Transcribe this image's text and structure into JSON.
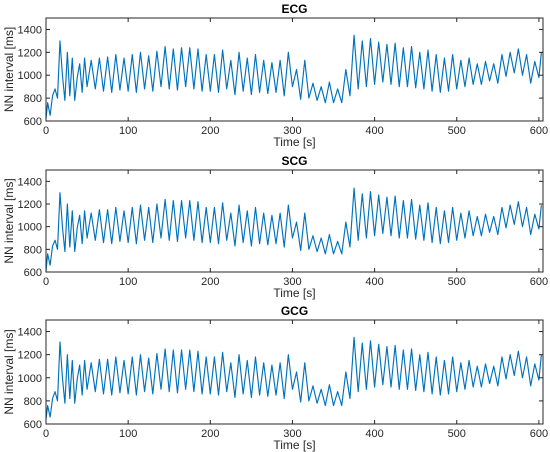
{
  "chart_data": [
    {
      "type": "line",
      "title": "ECG",
      "xlabel": "Time [s]",
      "ylabel": "NN interval [ms]",
      "xlim": [
        0,
        605
      ],
      "ylim": [
        600,
        1500
      ],
      "xticks": [
        "0",
        "100",
        "200",
        "300",
        "400",
        "500",
        "600"
      ],
      "yticks": [
        "600",
        "800",
        "1000",
        "1200",
        "1400"
      ],
      "color": "#0072BD",
      "series": [
        {
          "x": [
            0,
            2,
            5,
            8,
            11,
            14,
            17,
            20,
            23,
            26,
            29,
            32,
            35,
            38,
            41,
            44,
            47,
            50,
            55,
            60,
            65,
            70,
            75,
            80,
            85,
            90,
            95,
            100,
            105,
            110,
            115,
            120,
            125,
            130,
            135,
            140,
            145,
            150,
            155,
            160,
            165,
            170,
            175,
            180,
            185,
            190,
            195,
            200,
            205,
            210,
            215,
            220,
            225,
            230,
            235,
            240,
            245,
            250,
            255,
            260,
            265,
            270,
            275,
            280,
            285,
            290,
            295,
            300,
            305,
            310,
            315,
            320,
            325,
            330,
            335,
            340,
            345,
            350,
            355,
            360,
            365,
            370,
            375,
            380,
            385,
            390,
            395,
            400,
            405,
            410,
            415,
            420,
            425,
            430,
            435,
            440,
            445,
            450,
            455,
            460,
            465,
            470,
            475,
            480,
            485,
            490,
            495,
            500,
            505,
            510,
            515,
            520,
            525,
            530,
            535,
            540,
            545,
            550,
            555,
            560,
            565,
            570,
            575,
            580,
            585,
            590,
            595,
            600,
            603
          ],
          "y": [
            620,
            760,
            650,
            820,
            880,
            800,
            1300,
            1000,
            780,
            1200,
            820,
            1150,
            780,
            980,
            1100,
            850,
            1150,
            900,
            1130,
            880,
            1150,
            860,
            1160,
            850,
            1180,
            870,
            1150,
            860,
            1180,
            850,
            1200,
            880,
            1170,
            860,
            1210,
            900,
            1250,
            880,
            1230,
            870,
            1240,
            900,
            1240,
            880,
            1230,
            860,
            1180,
            860,
            1180,
            850,
            1220,
            880,
            1130,
            830,
            1200,
            860,
            1150,
            830,
            1180,
            850,
            1130,
            840,
            1110,
            850,
            1130,
            820,
            1200,
            900,
            1050,
            790,
            1130,
            800,
            930,
            780,
            900,
            760,
            940,
            760,
            880,
            760,
            1050,
            820,
            1350,
            880,
            1300,
            900,
            1320,
            920,
            1290,
            940,
            1270,
            920,
            1280,
            900,
            1240,
            900,
            1250,
            890,
            1200,
            880,
            1220,
            860,
            1180,
            850,
            1150,
            860,
            1180,
            880,
            1130,
            900,
            1150,
            920,
            1100,
            920,
            1120,
            950,
            1100,
            930,
            1180,
            990,
            1200,
            1020,
            1230,
            1000,
            1180,
            930,
            1120,
            980,
            1200
          ]
        }
      ]
    },
    {
      "type": "line",
      "title": "SCG",
      "xlabel": "Time [s]",
      "ylabel": "NN interval [ms]",
      "xlim": [
        0,
        605
      ],
      "ylim": [
        600,
        1500
      ],
      "xticks": [
        "0",
        "100",
        "200",
        "300",
        "400",
        "500",
        "600"
      ],
      "yticks": [
        "600",
        "800",
        "1000",
        "1200",
        "1400"
      ],
      "color": "#0072BD",
      "series": [
        {
          "x": [
            0,
            2,
            5,
            8,
            11,
            14,
            17,
            20,
            23,
            26,
            29,
            32,
            35,
            38,
            41,
            44,
            47,
            50,
            55,
            60,
            65,
            70,
            75,
            80,
            85,
            90,
            95,
            100,
            105,
            110,
            115,
            120,
            125,
            130,
            135,
            140,
            145,
            150,
            155,
            160,
            165,
            170,
            175,
            180,
            185,
            190,
            195,
            200,
            205,
            210,
            215,
            220,
            225,
            230,
            235,
            240,
            245,
            250,
            255,
            260,
            265,
            270,
            275,
            280,
            285,
            290,
            295,
            300,
            305,
            310,
            315,
            320,
            325,
            330,
            335,
            340,
            345,
            350,
            355,
            360,
            365,
            370,
            375,
            380,
            385,
            390,
            395,
            400,
            405,
            410,
            415,
            420,
            425,
            430,
            435,
            440,
            445,
            450,
            455,
            460,
            465,
            470,
            475,
            480,
            485,
            490,
            495,
            500,
            505,
            510,
            515,
            520,
            525,
            530,
            535,
            540,
            545,
            550,
            555,
            560,
            565,
            570,
            575,
            580,
            585,
            590,
            595,
            600,
            603
          ],
          "y": [
            610,
            760,
            660,
            830,
            880,
            800,
            1300,
            1000,
            780,
            1200,
            820,
            1140,
            780,
            990,
            1100,
            850,
            1140,
            900,
            1120,
            880,
            1150,
            860,
            1150,
            850,
            1170,
            870,
            1140,
            860,
            1170,
            850,
            1190,
            880,
            1170,
            860,
            1200,
            900,
            1240,
            880,
            1230,
            870,
            1230,
            900,
            1230,
            880,
            1220,
            860,
            1170,
            860,
            1170,
            850,
            1210,
            880,
            1120,
            830,
            1190,
            860,
            1140,
            830,
            1170,
            850,
            1120,
            840,
            1100,
            850,
            1120,
            820,
            1190,
            900,
            1040,
            790,
            1120,
            800,
            920,
            780,
            900,
            760,
            930,
            760,
            870,
            760,
            1040,
            820,
            1340,
            880,
            1290,
            900,
            1310,
            920,
            1280,
            940,
            1260,
            920,
            1270,
            900,
            1230,
            900,
            1240,
            890,
            1190,
            880,
            1210,
            860,
            1170,
            850,
            1140,
            860,
            1170,
            880,
            1120,
            900,
            1140,
            920,
            1090,
            920,
            1110,
            950,
            1090,
            930,
            1170,
            990,
            1190,
            1020,
            1220,
            1000,
            1170,
            930,
            1110,
            980,
            1190
          ]
        }
      ]
    },
    {
      "type": "line",
      "title": "GCG",
      "xlabel": "Time [s]",
      "ylabel": "NN interval [ms]",
      "xlim": [
        0,
        605
      ],
      "ylim": [
        600,
        1500
      ],
      "xticks": [
        "0",
        "100",
        "200",
        "300",
        "400",
        "500",
        "600"
      ],
      "yticks": [
        "600",
        "800",
        "1000",
        "1200",
        "1400"
      ],
      "color": "#0072BD",
      "series": [
        {
          "x": [
            0,
            2,
            5,
            8,
            11,
            14,
            17,
            20,
            23,
            26,
            29,
            32,
            35,
            38,
            41,
            44,
            47,
            50,
            55,
            60,
            65,
            70,
            75,
            80,
            85,
            90,
            95,
            100,
            105,
            110,
            115,
            120,
            125,
            130,
            135,
            140,
            145,
            150,
            155,
            160,
            165,
            170,
            175,
            180,
            185,
            190,
            195,
            200,
            205,
            210,
            215,
            220,
            225,
            230,
            235,
            240,
            245,
            250,
            255,
            260,
            265,
            270,
            275,
            280,
            285,
            290,
            295,
            300,
            305,
            310,
            315,
            320,
            325,
            330,
            335,
            340,
            345,
            350,
            355,
            360,
            365,
            370,
            375,
            380,
            385,
            390,
            395,
            400,
            405,
            410,
            415,
            420,
            425,
            430,
            435,
            440,
            445,
            450,
            455,
            460,
            465,
            470,
            475,
            480,
            485,
            490,
            495,
            500,
            505,
            510,
            515,
            520,
            525,
            530,
            535,
            540,
            545,
            550,
            555,
            560,
            565,
            570,
            575,
            580,
            585,
            590,
            595,
            600,
            603
          ],
          "y": [
            640,
            760,
            660,
            820,
            880,
            800,
            1310,
            1000,
            780,
            1200,
            820,
            1150,
            780,
            990,
            1110,
            850,
            1150,
            900,
            1130,
            880,
            1160,
            860,
            1160,
            850,
            1180,
            870,
            1150,
            860,
            1180,
            850,
            1200,
            880,
            1170,
            860,
            1210,
            900,
            1250,
            880,
            1240,
            870,
            1240,
            900,
            1240,
            880,
            1230,
            860,
            1180,
            860,
            1180,
            850,
            1220,
            880,
            1130,
            830,
            1200,
            860,
            1150,
            830,
            1180,
            850,
            1130,
            840,
            1110,
            850,
            1130,
            820,
            1200,
            900,
            1050,
            790,
            1130,
            800,
            930,
            780,
            900,
            760,
            940,
            760,
            880,
            760,
            1050,
            820,
            1350,
            880,
            1300,
            900,
            1320,
            920,
            1290,
            940,
            1270,
            920,
            1280,
            900,
            1240,
            900,
            1250,
            890,
            1200,
            880,
            1220,
            860,
            1180,
            850,
            1150,
            860,
            1180,
            880,
            1130,
            900,
            1150,
            920,
            1100,
            920,
            1120,
            950,
            1100,
            930,
            1180,
            990,
            1200,
            1020,
            1230,
            1000,
            1180,
            930,
            1120,
            980,
            1200
          ]
        }
      ]
    }
  ]
}
